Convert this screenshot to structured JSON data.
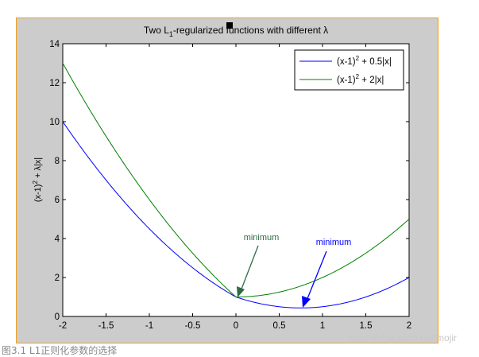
{
  "chart_data": {
    "type": "line",
    "title_main": "Two L",
    "title_sub": "1",
    "title_rest": "-regularized functions with different λ",
    "ylabel": "(x-1)2 + λ|x|",
    "xlim": [
      -2,
      2
    ],
    "ylim": [
      0,
      14
    ],
    "xticks": [
      "-2",
      "-1.5",
      "-1",
      "-0.5",
      "0",
      "0.5",
      "1",
      "1.5",
      "2"
    ],
    "yticks": [
      "0",
      "2",
      "4",
      "6",
      "8",
      "10",
      "12",
      "14"
    ],
    "legend_placement": "top-right",
    "grid": false,
    "series": [
      {
        "name": "(x-1)2 + 0.5|x|",
        "lambda": 0.5,
        "color": "#0000ff"
      },
      {
        "name": "(x-1)2 + 2|x|",
        "lambda": 2,
        "color": "#008000"
      }
    ],
    "annotations": [
      {
        "text": "minimum",
        "color": "#2e6b45",
        "x": 0,
        "y": 1
      },
      {
        "text": "minimum",
        "color": "#0000ff",
        "x": 0.75,
        "y": 0.4375
      }
    ]
  },
  "caption": "图3.1 L1正则化参数的选择",
  "watermark": "https://blog.csdn.net/mojir",
  "colors": {
    "figure_bg": "#cccccc",
    "axes_bg": "#ffffff",
    "frame": "#f0a020"
  }
}
